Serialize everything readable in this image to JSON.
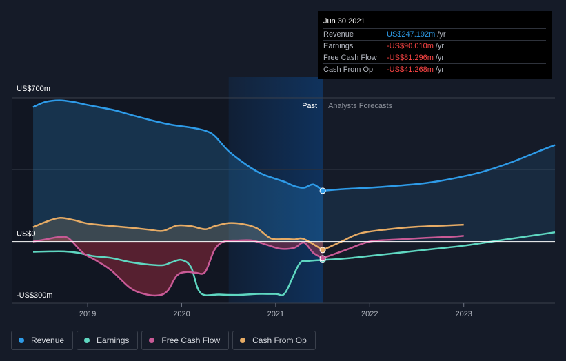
{
  "chart_data": {
    "type": "line",
    "title": "",
    "y_axis": {
      "ticks": [
        {
          "label": "US$700m",
          "value": 700
        },
        {
          "label": "US$0",
          "value": 0
        },
        {
          "label": "-US$300m",
          "value": -300
        }
      ],
      "ylim": [
        -300,
        700
      ]
    },
    "x_axis": {
      "ticks": [
        {
          "label": "2019",
          "value": 2019.0
        },
        {
          "label": "2020",
          "value": 2020.0
        },
        {
          "label": "2021",
          "value": 2021.0
        },
        {
          "label": "2022",
          "value": 2022.0
        },
        {
          "label": "2023",
          "value": 2023.0
        }
      ],
      "xlim": [
        2018.2,
        2023.97
      ]
    },
    "divider": {
      "x": 2021.5,
      "past_label": "Past",
      "forecast_label": "Analysts Forecasts",
      "highlight_start": 2020.5
    },
    "series": [
      {
        "name": "Revenue",
        "color": "#2e9be8",
        "fill": true,
        "points": [
          [
            2018.42,
            655
          ],
          [
            2018.55,
            680
          ],
          [
            2018.7,
            688
          ],
          [
            2018.85,
            680
          ],
          [
            2019.0,
            665
          ],
          [
            2019.15,
            652
          ],
          [
            2019.3,
            638
          ],
          [
            2019.5,
            612
          ],
          [
            2019.7,
            588
          ],
          [
            2019.9,
            568
          ],
          [
            2020.1,
            555
          ],
          [
            2020.25,
            540
          ],
          [
            2020.35,
            515
          ],
          [
            2020.5,
            440
          ],
          [
            2020.7,
            370
          ],
          [
            2020.85,
            330
          ],
          [
            2021.0,
            305
          ],
          [
            2021.1,
            290
          ],
          [
            2021.2,
            270
          ],
          [
            2021.3,
            262
          ],
          [
            2021.4,
            278
          ],
          [
            2021.5,
            247
          ]
        ],
        "forecast": [
          [
            2021.5,
            247
          ],
          [
            2021.7,
            255
          ],
          [
            2022.0,
            262
          ],
          [
            2022.3,
            272
          ],
          [
            2022.6,
            285
          ],
          [
            2022.9,
            308
          ],
          [
            2023.2,
            340
          ],
          [
            2023.5,
            385
          ],
          [
            2023.8,
            440
          ],
          [
            2023.97,
            470
          ]
        ],
        "marker": [
          2021.5,
          247.192
        ]
      },
      {
        "name": "Earnings",
        "color": "#5fd7c1",
        "fill": false,
        "points": [
          [
            2018.42,
            -50
          ],
          [
            2018.6,
            -48
          ],
          [
            2018.75,
            -48
          ],
          [
            2018.9,
            -55
          ],
          [
            2019.05,
            -70
          ],
          [
            2019.25,
            -80
          ],
          [
            2019.45,
            -100
          ],
          [
            2019.65,
            -112
          ],
          [
            2019.8,
            -115
          ],
          [
            2019.9,
            -100
          ],
          [
            2020.0,
            -90
          ],
          [
            2020.1,
            -125
          ],
          [
            2020.2,
            -250
          ],
          [
            2020.4,
            -258
          ],
          [
            2020.6,
            -260
          ],
          [
            2020.8,
            -255
          ],
          [
            2021.0,
            -255
          ],
          [
            2021.1,
            -250
          ],
          [
            2021.25,
            -110
          ],
          [
            2021.35,
            -95
          ],
          [
            2021.5,
            -90
          ]
        ],
        "forecast": [
          [
            2021.5,
            -90
          ],
          [
            2021.8,
            -80
          ],
          [
            2022.1,
            -65
          ],
          [
            2022.4,
            -50
          ],
          [
            2022.7,
            -35
          ],
          [
            2023.0,
            -20
          ],
          [
            2023.3,
            0
          ],
          [
            2023.6,
            20
          ],
          [
            2023.97,
            45
          ]
        ],
        "marker": [
          2021.5,
          -90.01
        ]
      },
      {
        "name": "Free Cash Flow",
        "color": "#c85a96",
        "fill": true,
        "points": [
          [
            2018.42,
            0
          ],
          [
            2018.55,
            10
          ],
          [
            2018.7,
            22
          ],
          [
            2018.8,
            15
          ],
          [
            2018.95,
            -55
          ],
          [
            2019.1,
            -95
          ],
          [
            2019.25,
            -140
          ],
          [
            2019.45,
            -225
          ],
          [
            2019.6,
            -255
          ],
          [
            2019.75,
            -262
          ],
          [
            2019.85,
            -240
          ],
          [
            2019.95,
            -165
          ],
          [
            2020.05,
            -148
          ],
          [
            2020.15,
            -152
          ],
          [
            2020.25,
            -148
          ],
          [
            2020.35,
            -40
          ],
          [
            2020.45,
            0
          ],
          [
            2020.6,
            5
          ],
          [
            2020.75,
            5
          ],
          [
            2020.9,
            -15
          ],
          [
            2021.05,
            -35
          ],
          [
            2021.2,
            -30
          ],
          [
            2021.3,
            -5
          ],
          [
            2021.4,
            -55
          ],
          [
            2021.5,
            -81
          ]
        ],
        "forecast": [
          [
            2021.5,
            -81
          ],
          [
            2021.75,
            -40
          ],
          [
            2022.0,
            0
          ],
          [
            2022.3,
            10
          ],
          [
            2022.6,
            18
          ],
          [
            2022.9,
            24
          ],
          [
            2023.0,
            28
          ]
        ],
        "marker": [
          2021.5,
          -81.296
        ]
      },
      {
        "name": "Cash From Op",
        "color": "#e6ab65",
        "fill": true,
        "points": [
          [
            2018.42,
            70
          ],
          [
            2018.55,
            95
          ],
          [
            2018.7,
            115
          ],
          [
            2018.85,
            105
          ],
          [
            2019.0,
            88
          ],
          [
            2019.2,
            78
          ],
          [
            2019.45,
            68
          ],
          [
            2019.65,
            58
          ],
          [
            2019.8,
            52
          ],
          [
            2019.95,
            78
          ],
          [
            2020.1,
            75
          ],
          [
            2020.25,
            60
          ],
          [
            2020.35,
            75
          ],
          [
            2020.5,
            90
          ],
          [
            2020.65,
            85
          ],
          [
            2020.8,
            65
          ],
          [
            2020.95,
            15
          ],
          [
            2021.1,
            12
          ],
          [
            2021.2,
            10
          ],
          [
            2021.3,
            12
          ],
          [
            2021.5,
            -41
          ]
        ],
        "forecast": [
          [
            2021.5,
            -41
          ],
          [
            2021.7,
            0
          ],
          [
            2021.9,
            40
          ],
          [
            2022.2,
            60
          ],
          [
            2022.5,
            72
          ],
          [
            2022.8,
            78
          ],
          [
            2023.0,
            82
          ]
        ],
        "marker": [
          2021.5,
          -41.268
        ]
      }
    ]
  },
  "tooltip": {
    "date": "Jun 30 2021",
    "rows": [
      {
        "label": "Revenue",
        "value": "US$247.192m",
        "unit": "/yr",
        "color": "#2e9be8"
      },
      {
        "label": "Earnings",
        "value": "-US$90.010m",
        "unit": "/yr",
        "color": "#ff4545"
      },
      {
        "label": "Free Cash Flow",
        "value": "-US$81.296m",
        "unit": "/yr",
        "color": "#ff4545"
      },
      {
        "label": "Cash From Op",
        "value": "-US$41.268m",
        "unit": "/yr",
        "color": "#ff4545"
      }
    ]
  },
  "legend": [
    {
      "label": "Revenue",
      "color": "#2e9be8"
    },
    {
      "label": "Earnings",
      "color": "#5fd7c1"
    },
    {
      "label": "Free Cash Flow",
      "color": "#c85a96"
    },
    {
      "label": "Cash From Op",
      "color": "#e6ab65"
    }
  ]
}
